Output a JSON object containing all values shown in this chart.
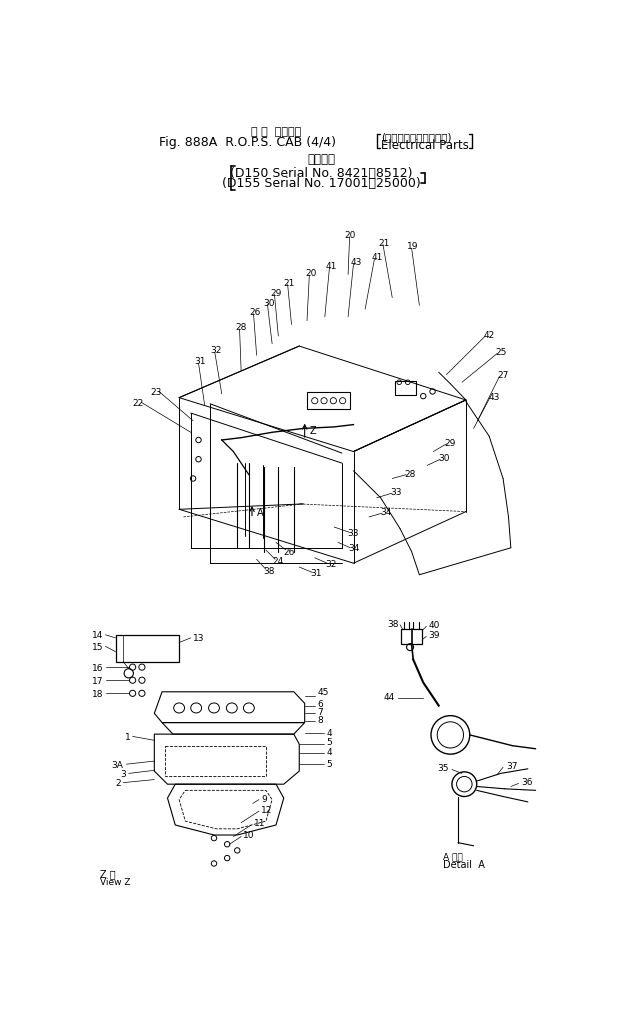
{
  "bg_color": "#ffffff",
  "fig_width": 6.27,
  "fig_height": 10.12,
  "dpi": 100,
  "title1": "ロ プ  スキャブ",
  "title2a": "Fig. 888A  R.O.P.S. CAB (4/4)",
  "title2b": "(エレクトリカルパーツ)",
  "title2c": "Electrical Parts",
  "title3": "適用号機",
  "title4": "(D150 Serial No. 8421～8512)",
  "title5": "(D155 Serial No. 17001～25000)"
}
